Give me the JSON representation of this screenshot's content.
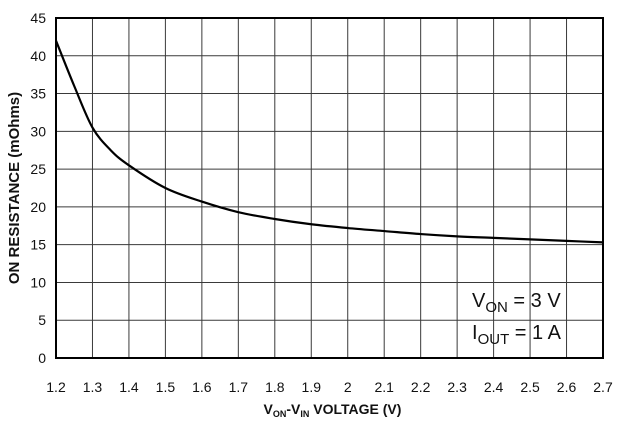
{
  "chart_data": {
    "type": "line",
    "xlabel": {
      "main": "V",
      "sub1": "ON",
      "mid": "-V",
      "sub2": "IN",
      "tail": " VOLTAGE (V)"
    },
    "ylabel": "ON RESISTANCE (mOhms)",
    "xlim": [
      1.2,
      2.7
    ],
    "ylim": [
      0,
      45
    ],
    "xticks": [
      "1.2",
      "1.3",
      "1.4",
      "1.5",
      "1.6",
      "1.7",
      "1.8",
      "1.9",
      "2",
      "2.1",
      "2.2",
      "2.3",
      "2.4",
      "2.5",
      "2.6",
      "2.7"
    ],
    "yticks": [
      "0",
      "5",
      "10",
      "15",
      "20",
      "25",
      "30",
      "35",
      "40",
      "45"
    ],
    "grid": true,
    "legend": "none",
    "series": [
      {
        "line_color": "#000000",
        "x": [
          1.2,
          1.25,
          1.3,
          1.35,
          1.4,
          1.5,
          1.6,
          1.7,
          1.8,
          1.9,
          2.0,
          2.1,
          2.2,
          2.3,
          2.4,
          2.5,
          2.6,
          2.7
        ],
        "y": [
          42,
          36,
          30.5,
          27.5,
          25.5,
          22.5,
          20.7,
          19.3,
          18.4,
          17.7,
          17.2,
          16.8,
          16.4,
          16.1,
          15.9,
          15.7,
          15.5,
          15.3
        ]
      }
    ],
    "annotations": [
      {
        "main": "V",
        "sub": "ON",
        "tail": " = 3 V"
      },
      {
        "main": "I",
        "sub": "OUT",
        "tail": " = 1 A"
      }
    ]
  }
}
